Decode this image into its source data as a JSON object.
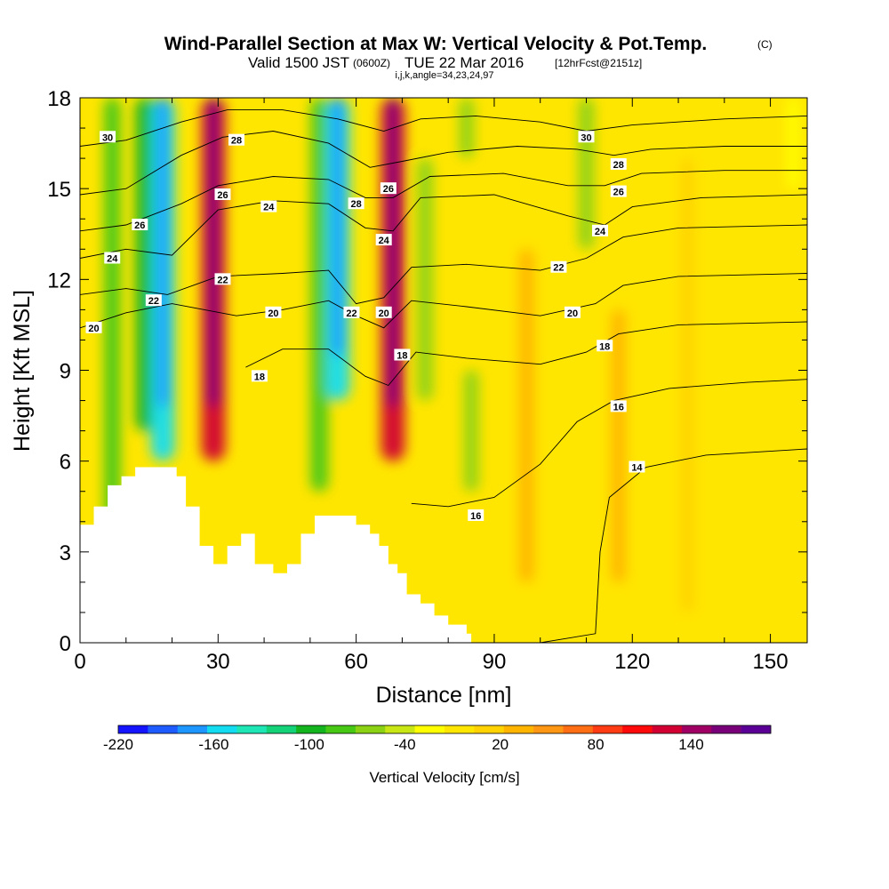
{
  "chart_data": {
    "type": "heatmap",
    "title": "Wind-Parallel Section at Max W: Vertical Velocity & Pot.Temp.",
    "title_unit": "(C)",
    "subtitle_main": "Valid 1500 JST",
    "subtitle_z": "(0600Z)",
    "subtitle_date": "TUE 22 Mar 2016",
    "subtitle_fcst": "[12hrFcst@2151z]",
    "subtitle_indices": "i,j,k,angle=34,23,24,97",
    "xlabel": "Distance [nm]",
    "ylabel": "Height [Kft MSL]",
    "xlim": [
      0,
      158
    ],
    "ylim": [
      0,
      18
    ],
    "xticks": [
      "0",
      "30",
      "60",
      "90",
      "120",
      "150"
    ],
    "xtick_values": [
      0,
      30,
      60,
      90,
      120,
      150
    ],
    "yticks": [
      "0",
      "3",
      "6",
      "9",
      "12",
      "15",
      "18"
    ],
    "ytick_values": [
      0,
      3,
      6,
      9,
      12,
      15,
      18
    ],
    "colorbar": {
      "label": "Vertical Velocity [cm/s]",
      "min": -220,
      "max": 170,
      "step": 20,
      "tick_labels": [
        "-220",
        "-160",
        "-100",
        "-40",
        "20",
        "80",
        "140"
      ],
      "tick_values": [
        -220,
        -160,
        -100,
        -40,
        20,
        80,
        140
      ],
      "colors": [
        "#1414ff",
        "#1e5cff",
        "#1e96ff",
        "#14dcf0",
        "#1ee6b4",
        "#14d278",
        "#14b41e",
        "#46c814",
        "#8cd214",
        "#c8e614",
        "#ffff00",
        "#ffe600",
        "#ffd200",
        "#ffb400",
        "#ff9614",
        "#ff6e14",
        "#ff3c14",
        "#ff0a0a",
        "#d20032",
        "#a00064",
        "#780078",
        "#5a0096"
      ]
    },
    "vertical_velocity_features": [
      {
        "x": 7,
        "z0": 3,
        "z1": 18,
        "w": -70
      },
      {
        "x": 14,
        "z0": 7,
        "z1": 18,
        "w": -90
      },
      {
        "x": 18,
        "z0": 6,
        "z1": 18,
        "w": -150
      },
      {
        "x": 29,
        "z0": 6,
        "z1": 18,
        "w": 150
      },
      {
        "x": 52,
        "z0": 5,
        "z1": 18,
        "w": -80
      },
      {
        "x": 56,
        "z0": 8,
        "z1": 18,
        "w": -150
      },
      {
        "x": 68,
        "z0": 6,
        "z1": 18,
        "w": 150
      },
      {
        "x": 75,
        "z0": 8,
        "z1": 16,
        "w": -60
      },
      {
        "x": 85,
        "z0": 5,
        "z1": 9,
        "w": -50
      },
      {
        "x": 84,
        "z0": 16,
        "z1": 18,
        "w": -50
      },
      {
        "x": 97,
        "z0": 2,
        "z1": 13,
        "w": 50
      },
      {
        "x": 110,
        "z0": 13,
        "z1": 18,
        "w": -60
      },
      {
        "x": 117,
        "z0": 2,
        "z1": 11,
        "w": 40
      },
      {
        "x": 132,
        "z0": 1,
        "z1": 16,
        "w": 25
      },
      {
        "x": 155,
        "z0": 15,
        "z1": 18,
        "w": -20
      }
    ],
    "terrain_kft": [
      [
        0,
        3.9
      ],
      [
        3,
        3.9
      ],
      [
        3,
        4.5
      ],
      [
        6,
        4.5
      ],
      [
        6,
        5.2
      ],
      [
        9,
        5.2
      ],
      [
        9,
        5.5
      ],
      [
        12,
        5.5
      ],
      [
        12,
        5.8
      ],
      [
        21,
        5.8
      ],
      [
        21,
        5.5
      ],
      [
        23,
        5.5
      ],
      [
        23,
        4.5
      ],
      [
        26,
        4.5
      ],
      [
        26,
        3.2
      ],
      [
        29,
        3.2
      ],
      [
        29,
        2.6
      ],
      [
        32,
        2.6
      ],
      [
        32,
        3.2
      ],
      [
        35,
        3.2
      ],
      [
        35,
        3.6
      ],
      [
        38,
        3.6
      ],
      [
        38,
        2.6
      ],
      [
        42,
        2.6
      ],
      [
        42,
        2.3
      ],
      [
        45,
        2.3
      ],
      [
        45,
        2.6
      ],
      [
        48,
        2.6
      ],
      [
        48,
        3.6
      ],
      [
        51,
        3.6
      ],
      [
        51,
        4.2
      ],
      [
        60,
        4.2
      ],
      [
        60,
        3.9
      ],
      [
        63,
        3.9
      ],
      [
        63,
        3.6
      ],
      [
        65,
        3.6
      ],
      [
        65,
        3.2
      ],
      [
        67,
        3.2
      ],
      [
        67,
        2.6
      ],
      [
        69,
        2.6
      ],
      [
        69,
        2.3
      ],
      [
        71,
        2.3
      ],
      [
        71,
        1.6
      ],
      [
        74,
        1.6
      ],
      [
        74,
        1.3
      ],
      [
        77,
        1.3
      ],
      [
        77,
        0.9
      ],
      [
        80,
        0.9
      ],
      [
        80,
        0.6
      ],
      [
        84,
        0.6
      ],
      [
        84,
        0.3
      ],
      [
        85,
        0.3
      ],
      [
        85,
        0
      ]
    ],
    "potential_temperature_contours": [
      {
        "value": 14,
        "points": [
          [
            100,
            0
          ],
          [
            112,
            0.3
          ],
          [
            113,
            3
          ],
          [
            115,
            4.8
          ],
          [
            123,
            5.8
          ],
          [
            136,
            6.2
          ],
          [
            158,
            6.4
          ]
        ]
      },
      {
        "value": 16,
        "points": [
          [
            72,
            4.6
          ],
          [
            80,
            4.5
          ],
          [
            90,
            4.8
          ],
          [
            100,
            5.9
          ],
          [
            108,
            7.3
          ],
          [
            116,
            8
          ],
          [
            128,
            8.4
          ],
          [
            145,
            8.6
          ],
          [
            158,
            8.7
          ]
        ]
      },
      {
        "value": 18,
        "points": [
          [
            36,
            9.1
          ],
          [
            44,
            9.7
          ],
          [
            54,
            9.7
          ],
          [
            62,
            8.8
          ],
          [
            67,
            8.5
          ],
          [
            73,
            9.6
          ],
          [
            84,
            9.4
          ],
          [
            100,
            9.2
          ],
          [
            110,
            9.6
          ],
          [
            117,
            10.2
          ],
          [
            130,
            10.5
          ],
          [
            158,
            10.6
          ]
        ]
      },
      {
        "value": 20,
        "points": [
          [
            0,
            10.4
          ],
          [
            10,
            10.9
          ],
          [
            20,
            11.2
          ],
          [
            34,
            10.8
          ],
          [
            44,
            11
          ],
          [
            54,
            11.3
          ],
          [
            60,
            10.8
          ],
          [
            66,
            10.4
          ],
          [
            72,
            11.3
          ],
          [
            84,
            11.1
          ],
          [
            100,
            10.8
          ],
          [
            112,
            11.2
          ],
          [
            118,
            11.8
          ],
          [
            130,
            12.1
          ],
          [
            158,
            12.2
          ]
        ]
      },
      {
        "value": 22,
        "points": [
          [
            0,
            11.5
          ],
          [
            10,
            11.7
          ],
          [
            19,
            11.5
          ],
          [
            30,
            12.1
          ],
          [
            44,
            12.2
          ],
          [
            54,
            12.3
          ],
          [
            60,
            11.2
          ],
          [
            66,
            11.4
          ],
          [
            72,
            12.4
          ],
          [
            84,
            12.5
          ],
          [
            100,
            12.3
          ],
          [
            110,
            12.7
          ],
          [
            118,
            13.4
          ],
          [
            130,
            13.7
          ],
          [
            158,
            13.8
          ]
        ]
      },
      {
        "value": 24,
        "points": [
          [
            0,
            12.7
          ],
          [
            10,
            13
          ],
          [
            20,
            12.8
          ],
          [
            30,
            14.3
          ],
          [
            42,
            14.6
          ],
          [
            54,
            14.5
          ],
          [
            62,
            13.7
          ],
          [
            68,
            13.6
          ],
          [
            74,
            14.7
          ],
          [
            90,
            14.8
          ],
          [
            106,
            14.1
          ],
          [
            114,
            13.8
          ],
          [
            120,
            14.4
          ],
          [
            135,
            14.7
          ],
          [
            158,
            14.8
          ]
        ]
      },
      {
        "value": 26,
        "points": [
          [
            0,
            13.6
          ],
          [
            10,
            13.8
          ],
          [
            22,
            14.5
          ],
          [
            30,
            15.1
          ],
          [
            42,
            15.4
          ],
          [
            54,
            15.3
          ],
          [
            62,
            14.7
          ],
          [
            68,
            14.7
          ],
          [
            76,
            15.4
          ],
          [
            92,
            15.5
          ],
          [
            106,
            15.1
          ],
          [
            114,
            15.1
          ],
          [
            122,
            15.5
          ],
          [
            140,
            15.6
          ],
          [
            158,
            15.6
          ]
        ]
      },
      {
        "value": 28,
        "points": [
          [
            0,
            14.8
          ],
          [
            10,
            15
          ],
          [
            22,
            16.1
          ],
          [
            31,
            16.7
          ],
          [
            42,
            16.9
          ],
          [
            54,
            16.5
          ],
          [
            63,
            15.7
          ],
          [
            70,
            15.9
          ],
          [
            80,
            16.2
          ],
          [
            95,
            16.4
          ],
          [
            108,
            16.3
          ],
          [
            116,
            16.1
          ],
          [
            124,
            16.3
          ],
          [
            140,
            16.4
          ],
          [
            158,
            16.4
          ]
        ]
      },
      {
        "value": 30,
        "points": [
          [
            0,
            16.4
          ],
          [
            10,
            16.6
          ],
          [
            22,
            17.2
          ],
          [
            32,
            17.6
          ],
          [
            44,
            17.6
          ],
          [
            56,
            17.3
          ],
          [
            66,
            16.9
          ],
          [
            74,
            17.3
          ],
          [
            86,
            17.4
          ],
          [
            100,
            17.2
          ],
          [
            110,
            16.9
          ],
          [
            120,
            17.1
          ],
          [
            140,
            17.3
          ],
          [
            158,
            17.4
          ]
        ]
      }
    ],
    "contour_labels": [
      {
        "text": "30",
        "x": 6,
        "z": 16.7
      },
      {
        "text": "28",
        "x": 34,
        "z": 16.6
      },
      {
        "text": "26",
        "x": 13,
        "z": 13.8
      },
      {
        "text": "26",
        "x": 31,
        "z": 14.8
      },
      {
        "text": "24",
        "x": 7,
        "z": 12.7
      },
      {
        "text": "24",
        "x": 41,
        "z": 14.4
      },
      {
        "text": "22",
        "x": 16,
        "z": 11.3
      },
      {
        "text": "22",
        "x": 31,
        "z": 12
      },
      {
        "text": "20",
        "x": 3,
        "z": 10.4
      },
      {
        "text": "20",
        "x": 42,
        "z": 10.9
      },
      {
        "text": "18",
        "x": 39,
        "z": 8.8
      },
      {
        "text": "28",
        "x": 60,
        "z": 14.5
      },
      {
        "text": "26",
        "x": 67,
        "z": 15
      },
      {
        "text": "24",
        "x": 66,
        "z": 13.3
      },
      {
        "text": "22",
        "x": 59,
        "z": 10.9
      },
      {
        "text": "20",
        "x": 66,
        "z": 10.9
      },
      {
        "text": "18",
        "x": 70,
        "z": 9.5
      },
      {
        "text": "30",
        "x": 110,
        "z": 16.7
      },
      {
        "text": "28",
        "x": 117,
        "z": 15.8
      },
      {
        "text": "26",
        "x": 117,
        "z": 14.9
      },
      {
        "text": "24",
        "x": 113,
        "z": 13.6
      },
      {
        "text": "22",
        "x": 104,
        "z": 12.4
      },
      {
        "text": "20",
        "x": 107,
        "z": 10.9
      },
      {
        "text": "18",
        "x": 114,
        "z": 9.8
      },
      {
        "text": "16",
        "x": 117,
        "z": 7.8
      },
      {
        "text": "14",
        "x": 121,
        "z": 5.8
      },
      {
        "text": "16",
        "x": 86,
        "z": 4.2
      }
    ]
  }
}
